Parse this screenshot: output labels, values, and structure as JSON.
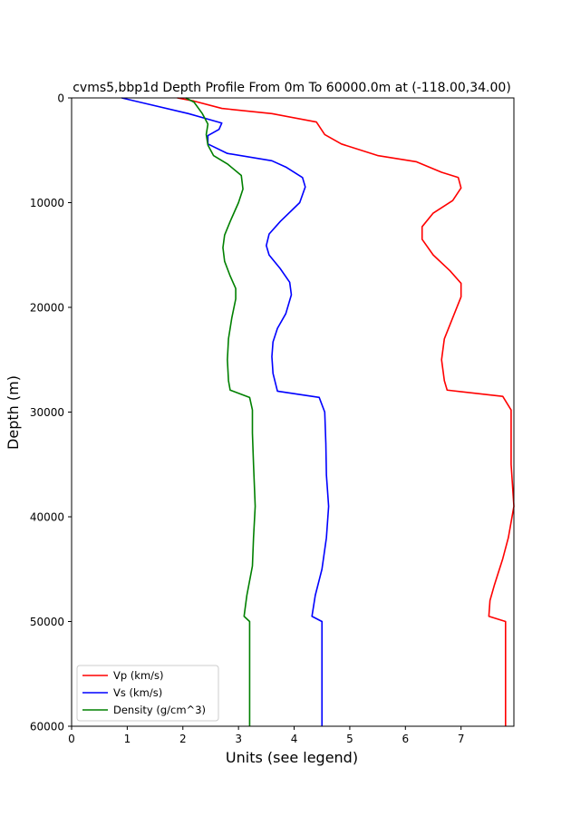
{
  "chart_data": {
    "type": "line",
    "title": "cvms5,bbp1d Depth Profile From 0m To 60000.0m at (-118.00,34.00)",
    "xlabel": "Units (see legend)",
    "ylabel": "Depth (m)",
    "xlim": [
      0,
      7.95
    ],
    "ylim": [
      0,
      60000
    ],
    "y_inverted": true,
    "x_ticks": [
      0,
      1,
      2,
      3,
      4,
      5,
      6,
      7
    ],
    "y_ticks": [
      0,
      10000,
      20000,
      30000,
      40000,
      50000,
      60000
    ],
    "grid": false,
    "legend_position": "lower-left",
    "series": [
      {
        "name": "Vp (km/s)",
        "color": "#ff0000",
        "points": [
          [
            1.9,
            0
          ],
          [
            2.2,
            300
          ],
          [
            2.7,
            1000
          ],
          [
            3.6,
            1500
          ],
          [
            4.4,
            2300
          ],
          [
            4.45,
            2700
          ],
          [
            4.55,
            3500
          ],
          [
            4.85,
            4400
          ],
          [
            5.5,
            5500
          ],
          [
            6.2,
            6100
          ],
          [
            6.65,
            7100
          ],
          [
            6.95,
            7600
          ],
          [
            7.0,
            8600
          ],
          [
            6.85,
            9800
          ],
          [
            6.5,
            11000
          ],
          [
            6.3,
            12300
          ],
          [
            6.3,
            13500
          ],
          [
            6.5,
            15000
          ],
          [
            6.8,
            16500
          ],
          [
            7.0,
            17700
          ],
          [
            7.0,
            19000
          ],
          [
            6.85,
            21000
          ],
          [
            6.7,
            23000
          ],
          [
            6.65,
            25000
          ],
          [
            6.7,
            27000
          ],
          [
            6.75,
            27900
          ],
          [
            7.75,
            28500
          ],
          [
            7.9,
            29800
          ],
          [
            7.9,
            32000
          ],
          [
            7.9,
            35000
          ],
          [
            7.95,
            39000
          ],
          [
            7.85,
            42000
          ],
          [
            7.75,
            44000
          ],
          [
            7.6,
            46500
          ],
          [
            7.52,
            48000
          ],
          [
            7.5,
            49500
          ],
          [
            7.8,
            50000
          ],
          [
            7.8,
            60000
          ]
        ]
      },
      {
        "name": "Vs (km/s)",
        "color": "#0000ff",
        "points": [
          [
            0.9,
            0
          ],
          [
            1.3,
            500
          ],
          [
            2.1,
            1500
          ],
          [
            2.7,
            2400
          ],
          [
            2.65,
            3000
          ],
          [
            2.45,
            3600
          ],
          [
            2.45,
            4400
          ],
          [
            2.8,
            5300
          ],
          [
            3.6,
            6000
          ],
          [
            3.85,
            6600
          ],
          [
            4.15,
            7600
          ],
          [
            4.2,
            8500
          ],
          [
            4.1,
            10000
          ],
          [
            3.75,
            11800
          ],
          [
            3.55,
            13000
          ],
          [
            3.5,
            14100
          ],
          [
            3.55,
            15000
          ],
          [
            3.75,
            16300
          ],
          [
            3.92,
            17600
          ],
          [
            3.95,
            18800
          ],
          [
            3.85,
            20600
          ],
          [
            3.7,
            22000
          ],
          [
            3.62,
            23300
          ],
          [
            3.6,
            24700
          ],
          [
            3.62,
            26300
          ],
          [
            3.7,
            28000
          ],
          [
            4.45,
            28600
          ],
          [
            4.55,
            30000
          ],
          [
            4.57,
            33000
          ],
          [
            4.58,
            36000
          ],
          [
            4.62,
            39000
          ],
          [
            4.58,
            42000
          ],
          [
            4.5,
            45000
          ],
          [
            4.38,
            47500
          ],
          [
            4.32,
            49500
          ],
          [
            4.5,
            50000
          ],
          [
            4.5,
            60000
          ]
        ]
      },
      {
        "name": "Density (g/cm^3)",
        "color": "#008000",
        "points": [
          [
            2.05,
            0
          ],
          [
            2.2,
            400
          ],
          [
            2.35,
            1500
          ],
          [
            2.45,
            2500
          ],
          [
            2.42,
            3500
          ],
          [
            2.45,
            4500
          ],
          [
            2.55,
            5500
          ],
          [
            2.8,
            6300
          ],
          [
            3.05,
            7400
          ],
          [
            3.08,
            8700
          ],
          [
            3.0,
            10000
          ],
          [
            2.85,
            11800
          ],
          [
            2.75,
            13100
          ],
          [
            2.72,
            14300
          ],
          [
            2.75,
            15600
          ],
          [
            2.85,
            17000
          ],
          [
            2.95,
            18200
          ],
          [
            2.95,
            19200
          ],
          [
            2.88,
            21000
          ],
          [
            2.82,
            23000
          ],
          [
            2.8,
            25000
          ],
          [
            2.82,
            27000
          ],
          [
            2.85,
            27900
          ],
          [
            3.2,
            28600
          ],
          [
            3.25,
            29800
          ],
          [
            3.25,
            32000
          ],
          [
            3.27,
            35000
          ],
          [
            3.3,
            39000
          ],
          [
            3.27,
            42000
          ],
          [
            3.25,
            44700
          ],
          [
            3.15,
            47500
          ],
          [
            3.1,
            49500
          ],
          [
            3.2,
            50000
          ],
          [
            3.2,
            60000
          ]
        ]
      }
    ]
  }
}
